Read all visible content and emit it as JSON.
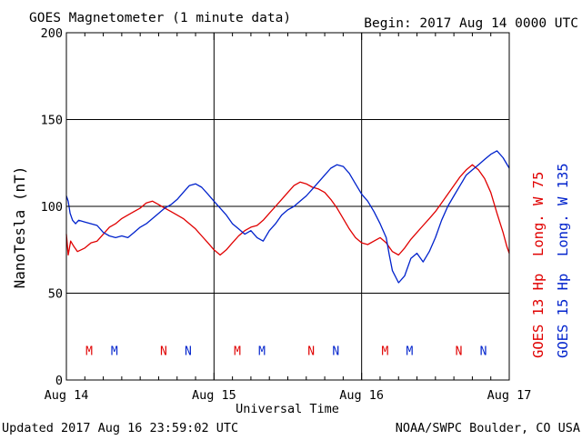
{
  "header": {
    "title": "GOES Magnetometer (1 minute data)",
    "begin": "Begin:  2017 Aug 14 0000 UTC"
  },
  "footer": {
    "updated": "Updated 2017 Aug 16 23:59:02 UTC",
    "credit": "NOAA/SWPC Boulder, CO USA"
  },
  "colors": {
    "goes13": "#e00000",
    "goes15": "#0022cc",
    "axis": "#000000",
    "background": "#ffffff"
  },
  "chart_data": {
    "type": "line",
    "title": "GOES Magnetometer (1 minute data)",
    "xlabel": "Universal Time",
    "ylabel": "NanoTesla (nT)",
    "ylim": [
      0,
      200
    ],
    "yticks": [
      0,
      50,
      100,
      150,
      200
    ],
    "xlim": [
      0,
      72
    ],
    "x_unit": "hours since 2017 Aug 14 0000 UTC",
    "x_tick_hours": [
      0,
      24,
      48,
      72
    ],
    "x_tick_labels": [
      "Aug 14",
      "Aug 15",
      "Aug 16",
      "Aug 17"
    ],
    "grid": true,
    "series": [
      {
        "name": "GOES 13 Hp  Long. W 75",
        "color": "#e00000",
        "x": [
          0,
          0.3,
          0.7,
          1.2,
          1.8,
          2.4,
          3,
          4,
          5,
          6,
          7,
          8,
          9,
          10,
          11,
          12,
          13,
          14,
          15,
          16,
          17,
          18,
          19,
          20,
          21,
          22,
          23,
          24,
          25,
          26,
          27,
          28,
          29,
          30,
          31,
          32,
          33,
          34,
          35,
          36,
          37,
          38,
          39,
          40,
          41,
          42,
          43,
          44,
          45,
          46,
          47,
          48,
          49,
          50,
          51,
          52,
          53,
          54,
          55,
          56,
          57,
          58,
          59,
          60,
          61,
          62,
          63,
          64,
          65,
          66,
          67,
          68,
          69,
          70,
          71,
          71.6,
          72
        ],
        "y": [
          84,
          72,
          80,
          77,
          74,
          75,
          76,
          79,
          80,
          84,
          88,
          90,
          93,
          95,
          97,
          99,
          102,
          103,
          101,
          99,
          97,
          95,
          93,
          90,
          87,
          83,
          79,
          75,
          72,
          75,
          79,
          83,
          86,
          88,
          89,
          92,
          96,
          100,
          104,
          108,
          112,
          114,
          113,
          111,
          110,
          108,
          104,
          99,
          93,
          87,
          82,
          79,
          78,
          80,
          82,
          79,
          74,
          72,
          76,
          81,
          85,
          89,
          93,
          97,
          102,
          107,
          112,
          117,
          121,
          124,
          121,
          116,
          108,
          96,
          85,
          77,
          73
        ]
      },
      {
        "name": "GOES 15 Hp  Long. W 135",
        "color": "#0022cc",
        "x": [
          0,
          0.3,
          0.6,
          1,
          1.5,
          2,
          3,
          4,
          5,
          6,
          7,
          8,
          9,
          10,
          11,
          12,
          13,
          14,
          15,
          16,
          17,
          18,
          19,
          20,
          21,
          22,
          23,
          24,
          25,
          26,
          27,
          28,
          29,
          30,
          31,
          32,
          33,
          34,
          35,
          36,
          37,
          38,
          39,
          40,
          41,
          42,
          43,
          44,
          45,
          46,
          47,
          48,
          49,
          50,
          51,
          52,
          52.5,
          53,
          54,
          55,
          56,
          57,
          58,
          59,
          60,
          61,
          62,
          63,
          64,
          65,
          66,
          67,
          68,
          69,
          70,
          71,
          72
        ],
        "y": [
          106,
          103,
          96,
          92,
          90,
          92,
          91,
          90,
          89,
          85,
          83,
          82,
          83,
          82,
          85,
          88,
          90,
          93,
          96,
          99,
          101,
          104,
          108,
          112,
          113,
          111,
          107,
          103,
          99,
          95,
          90,
          87,
          84,
          86,
          82,
          80,
          86,
          90,
          95,
          98,
          100,
          103,
          106,
          110,
          114,
          118,
          122,
          124,
          123,
          119,
          113,
          107,
          103,
          97,
          90,
          82,
          72,
          63,
          56,
          60,
          70,
          73,
          68,
          74,
          82,
          92,
          100,
          106,
          112,
          118,
          121,
          124,
          127,
          130,
          132,
          128,
          122
        ]
      }
    ],
    "annotations": [
      {
        "label": "M",
        "x": 3.7,
        "y": 17,
        "color": "#e00000"
      },
      {
        "label": "M",
        "x": 7.8,
        "y": 17,
        "color": "#0022cc"
      },
      {
        "label": "N",
        "x": 15.8,
        "y": 17,
        "color": "#e00000"
      },
      {
        "label": "N",
        "x": 19.8,
        "y": 17,
        "color": "#0022cc"
      },
      {
        "label": "M",
        "x": 27.8,
        "y": 17,
        "color": "#e00000"
      },
      {
        "label": "M",
        "x": 31.8,
        "y": 17,
        "color": "#0022cc"
      },
      {
        "label": "N",
        "x": 39.8,
        "y": 17,
        "color": "#e00000"
      },
      {
        "label": "N",
        "x": 43.8,
        "y": 17,
        "color": "#0022cc"
      },
      {
        "label": "M",
        "x": 51.8,
        "y": 17,
        "color": "#e00000"
      },
      {
        "label": "M",
        "x": 55.8,
        "y": 17,
        "color": "#0022cc"
      },
      {
        "label": "N",
        "x": 63.8,
        "y": 17,
        "color": "#e00000"
      },
      {
        "label": "N",
        "x": 67.8,
        "y": 17,
        "color": "#0022cc"
      }
    ]
  }
}
